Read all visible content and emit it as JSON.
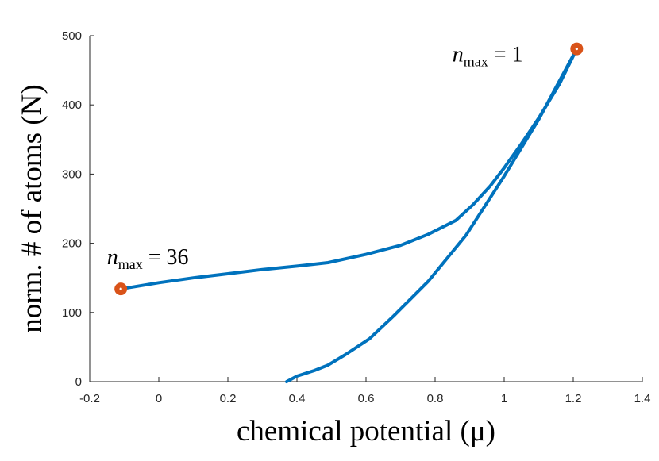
{
  "chart_data": {
    "type": "line",
    "xlabel": "chemical potential (μ)",
    "ylabel": "norm. # of atoms (N)",
    "xlim": [
      -0.2,
      1.4
    ],
    "ylim": [
      0,
      500
    ],
    "xticks": [
      -0.2,
      0,
      0.2,
      0.4,
      0.6,
      0.8,
      1,
      1.2,
      1.4
    ],
    "xtick_labels": [
      "-0.2",
      "0",
      "0.2",
      "0.4",
      "0.6",
      "0.8",
      "1",
      "1.2",
      "1.4"
    ],
    "yticks": [
      0,
      100,
      200,
      300,
      400,
      500
    ],
    "ytick_labels": [
      "0",
      "100",
      "200",
      "300",
      "400",
      "500"
    ],
    "grid": false,
    "line_color": "#0072BD",
    "marker_color": "#D95319",
    "series": [
      {
        "x": [
          -0.11,
          0.0,
          0.1,
          0.2,
          0.3,
          0.4,
          0.49,
          0.6,
          0.7,
          0.78,
          0.86,
          0.91,
          0.96,
          1.0,
          1.05,
          1.1,
          1.16,
          1.21
        ],
        "y": [
          134,
          143,
          150,
          156,
          162,
          167,
          172,
          184,
          197,
          213,
          233,
          256,
          283,
          309,
          344,
          381,
          430,
          481
        ]
      },
      {
        "x": [
          0.37,
          0.4,
          0.45,
          0.49,
          0.54,
          0.61,
          0.68,
          0.78,
          0.89,
          1.0,
          1.1,
          1.21
        ],
        "y": [
          0,
          8,
          16,
          24,
          39,
          62,
          95,
          145,
          212,
          297,
          379,
          481
        ]
      }
    ],
    "markers": [
      {
        "x": -0.11,
        "y": 134
      },
      {
        "x": 1.21,
        "y": 481
      }
    ],
    "annotations": [
      {
        "main": "n",
        "sub": "max",
        "rest": " = 36",
        "x": -0.15,
        "y": 170
      },
      {
        "main": "n",
        "sub": "max",
        "rest": " = 1",
        "x": 0.85,
        "y": 463
      }
    ]
  }
}
